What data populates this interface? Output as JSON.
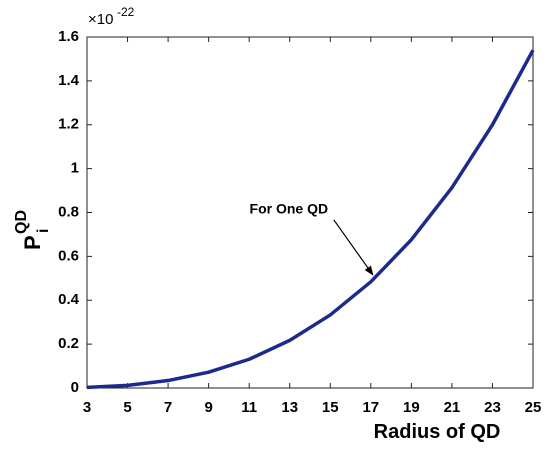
{
  "chart_data": {
    "type": "line",
    "xlabel": "Radius of QD",
    "ylabel": "P",
    "ylabel_sup": "QD",
    "ylabel_sub": "i",
    "exponent_base": "×10",
    "exponent_power": "-22",
    "x": [
      3,
      5,
      7,
      9,
      11,
      13,
      15,
      17,
      19,
      21,
      23,
      25
    ],
    "series": [
      {
        "name": "P_i^QD",
        "color": "#1c2a8c",
        "values": [
          0.003,
          0.012,
          0.034,
          0.072,
          0.131,
          0.217,
          0.333,
          0.484,
          0.676,
          0.913,
          1.2,
          1.54
        ]
      }
    ],
    "xlim": [
      3,
      25
    ],
    "xticks": [
      3,
      5,
      7,
      9,
      11,
      13,
      15,
      17,
      19,
      21,
      23,
      25
    ],
    "ylim": [
      0,
      1.6
    ],
    "yticks": [
      0,
      0.2,
      0.4,
      0.6,
      0.8,
      1,
      1.2,
      1.4,
      1.6
    ],
    "grid": false,
    "annotation": {
      "text": "For One QD",
      "x": 17,
      "y": 0.484
    }
  }
}
